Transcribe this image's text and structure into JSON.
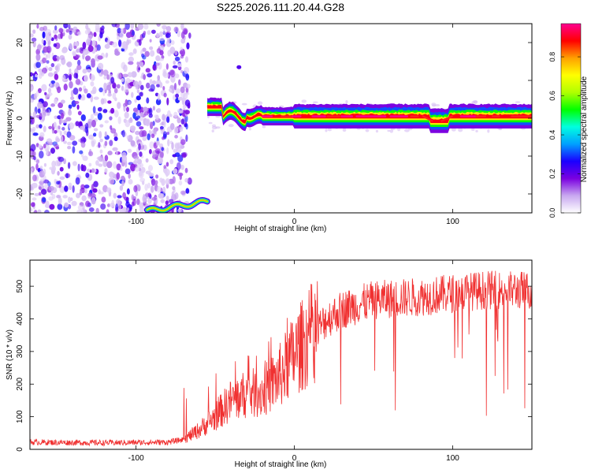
{
  "title": "S225.2026.111.20.44.G28",
  "chart_data": [
    {
      "type": "heatmap",
      "xlabel": "Height of straight line (km)",
      "ylabel": "Frequency (Hz)",
      "xlim": [
        -167,
        150
      ],
      "ylim": [
        -25,
        25
      ],
      "xticks": [
        -100,
        0,
        100
      ],
      "yticks": [
        -20,
        -10,
        0,
        10,
        20
      ],
      "colorbar": {
        "label": "Normalized spectral amplitude",
        "range": [
          0,
          0.97
        ],
        "ticks": [
          0,
          0.2,
          0.4,
          0.6,
          0.8
        ],
        "colormap": [
          "#ffffff",
          "#c8a8f0",
          "#7a00e0",
          "#1a00ff",
          "#00a0ff",
          "#00ffe0",
          "#00ff00",
          "#b0ff00",
          "#ffff00",
          "#ffa000",
          "#ff0000",
          "#ff0090"
        ]
      },
      "features": {
        "noise_region_x": [
          -167,
          -66
        ],
        "low_branch": {
          "x": [
            -93,
            -55
          ],
          "freq_hz": [
            -24.5,
            -22
          ]
        },
        "main_ridge": {
          "x": [
            -55,
            150
          ],
          "freq_hz": 0.5,
          "peak_amplitude": 0.97
        },
        "isolated_blob": {
          "x": -35,
          "freq_hz": 13.5
        }
      }
    },
    {
      "type": "line",
      "xlabel": "Height of straight line (km)",
      "ylabel": "SNR (10 * v/v)",
      "xlim": [
        -167,
        150
      ],
      "ylim": [
        0,
        580
      ],
      "xticks": [
        -100,
        0,
        100
      ],
      "yticks": [
        0,
        100,
        200,
        300,
        400,
        500
      ],
      "color": "#f03030",
      "trend": {
        "x": [
          -167,
          -120,
          -80,
          -70,
          -60,
          -50,
          -40,
          -30,
          -20,
          -10,
          0,
          10,
          20,
          30,
          50,
          80,
          100,
          120,
          150
        ],
        "y": [
          22,
          20,
          22,
          30,
          60,
          100,
          150,
          170,
          175,
          220,
          290,
          350,
          410,
          440,
          470,
          480,
          490,
          500,
          500
        ]
      }
    }
  ]
}
